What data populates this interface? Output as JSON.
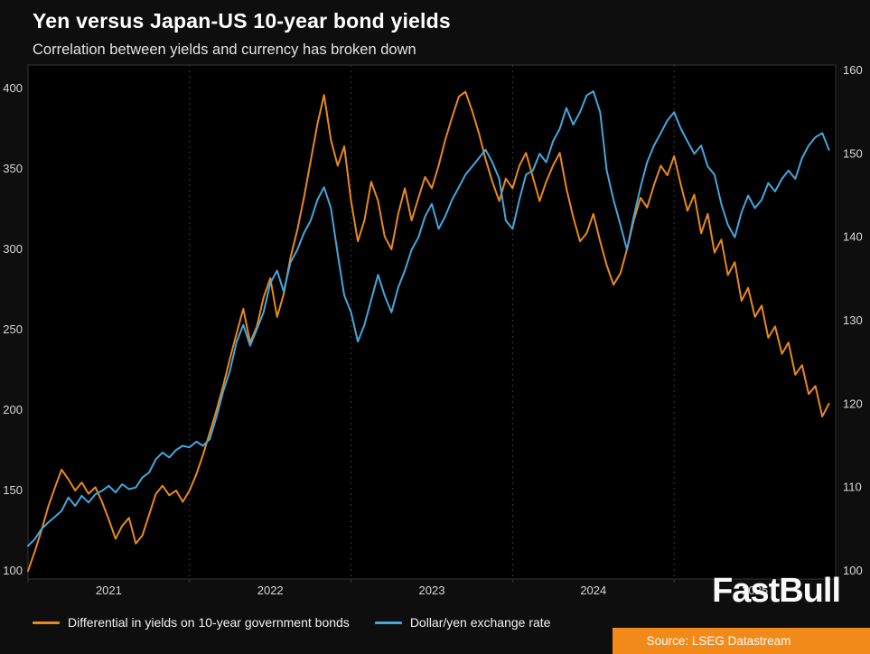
{
  "chart_data": {
    "type": "line",
    "title": "Yen versus Japan-US 10-year bond yields",
    "subtitle": "Correlation between yields and currency has broken down",
    "legend_position": "bottom",
    "grid": "vertical-dashed-yearly",
    "x_axis": {
      "range": [
        2021,
        2026
      ],
      "ticks": [
        2021,
        2022,
        2023,
        2024,
        2025
      ],
      "tick_labels": [
        "2021",
        "2022",
        "2023",
        "2024",
        "2025"
      ]
    },
    "left_axis": {
      "range": [
        100,
        400
      ],
      "ticks": [
        100,
        150,
        200,
        250,
        300,
        350,
        400
      ]
    },
    "right_axis": {
      "range": [
        100,
        160
      ],
      "ticks": [
        100,
        110,
        120,
        130,
        140,
        150,
        160
      ]
    },
    "x": [
      2021.0,
      2021.042,
      2021.083,
      2021.125,
      2021.167,
      2021.208,
      2021.25,
      2021.292,
      2021.333,
      2021.375,
      2021.417,
      2021.458,
      2021.5,
      2021.542,
      2021.583,
      2021.625,
      2021.667,
      2021.708,
      2021.75,
      2021.792,
      2021.833,
      2021.875,
      2021.917,
      2021.958,
      2022.0,
      2022.042,
      2022.083,
      2022.125,
      2022.167,
      2022.208,
      2022.25,
      2022.292,
      2022.333,
      2022.375,
      2022.417,
      2022.458,
      2022.5,
      2022.542,
      2022.583,
      2022.625,
      2022.667,
      2022.708,
      2022.75,
      2022.792,
      2022.833,
      2022.875,
      2022.917,
      2022.958,
      2023.0,
      2023.042,
      2023.083,
      2023.125,
      2023.167,
      2023.208,
      2023.25,
      2023.292,
      2023.333,
      2023.375,
      2023.417,
      2023.458,
      2023.5,
      2023.542,
      2023.583,
      2023.625,
      2023.667,
      2023.708,
      2023.75,
      2023.792,
      2023.833,
      2023.875,
      2023.917,
      2023.958,
      2024.0,
      2024.042,
      2024.083,
      2024.125,
      2024.167,
      2024.208,
      2024.25,
      2024.292,
      2024.333,
      2024.375,
      2024.417,
      2024.458,
      2024.5,
      2024.542,
      2024.583,
      2024.625,
      2024.667,
      2024.708,
      2024.75,
      2024.792,
      2024.833,
      2024.875,
      2024.917,
      2024.958,
      2025.0,
      2025.042,
      2025.083,
      2025.125,
      2025.167,
      2025.208,
      2025.25,
      2025.292,
      2025.333,
      2025.375,
      2025.417,
      2025.458,
      2025.5,
      2025.542,
      2025.583,
      2025.625,
      2025.667,
      2025.708,
      2025.75,
      2025.792,
      2025.833,
      2025.875,
      2025.917,
      2025.958
    ],
    "series": [
      {
        "name": "Differential in yields on 10-year government bonds",
        "axis": "left",
        "color": "#e8891d",
        "values": [
          100,
          112,
          125,
          140,
          152,
          163,
          157,
          150,
          155,
          148,
          152,
          143,
          132,
          120,
          128,
          133,
          117,
          122,
          135,
          148,
          153,
          147,
          150,
          143,
          150,
          160,
          172,
          186,
          200,
          215,
          232,
          248,
          263,
          242,
          252,
          270,
          282,
          258,
          272,
          295,
          312,
          332,
          355,
          378,
          396,
          368,
          352,
          364,
          330,
          305,
          318,
          342,
          330,
          308,
          300,
          322,
          338,
          318,
          332,
          345,
          338,
          352,
          368,
          382,
          395,
          398,
          386,
          372,
          356,
          342,
          330,
          344,
          338,
          352,
          360,
          345,
          330,
          342,
          352,
          360,
          338,
          320,
          305,
          310,
          322,
          305,
          290,
          278,
          285,
          300,
          318,
          332,
          326,
          340,
          352,
          346,
          358,
          340,
          324,
          334,
          310,
          322,
          298,
          306,
          284,
          292,
          268,
          276,
          258,
          265,
          245,
          252,
          235,
          242,
          222,
          228,
          210,
          215,
          196,
          204
        ]
      },
      {
        "name": "Dollar/yen exchange rate",
        "axis": "right",
        "color": "#45a6db",
        "values": [
          103.0,
          103.8,
          105.0,
          105.8,
          106.5,
          107.2,
          108.8,
          107.8,
          109.0,
          108.2,
          109.2,
          109.6,
          110.2,
          109.4,
          110.4,
          109.8,
          110.0,
          111.2,
          111.8,
          113.4,
          114.2,
          113.6,
          114.5,
          115.0,
          114.8,
          115.5,
          115.0,
          115.8,
          118.5,
          121.5,
          124.0,
          127.5,
          129.5,
          127.0,
          129.0,
          131.0,
          134.5,
          136.0,
          133.5,
          137.0,
          138.5,
          140.5,
          142.0,
          144.5,
          146.0,
          143.5,
          138.0,
          133.0,
          131.0,
          127.5,
          129.5,
          132.5,
          135.5,
          133.0,
          131.0,
          134.0,
          136.0,
          138.5,
          140.0,
          142.5,
          144.0,
          141.0,
          142.5,
          144.5,
          146.0,
          147.5,
          148.5,
          149.5,
          150.5,
          149.0,
          147.0,
          142.0,
          141.0,
          144.5,
          147.5,
          148.0,
          150.0,
          149.0,
          151.5,
          153.0,
          155.5,
          153.5,
          155.0,
          157.0,
          157.5,
          155.0,
          148.0,
          144.5,
          141.5,
          138.5,
          142.5,
          146.0,
          149.0,
          151.0,
          152.5,
          154.0,
          155.0,
          153.0,
          151.5,
          150.0,
          151.0,
          148.5,
          147.5,
          144.0,
          141.5,
          140.0,
          143.0,
          145.0,
          143.5,
          144.5,
          146.5,
          145.5,
          147.0,
          148.0,
          147.0,
          149.5,
          151.0,
          152.0,
          152.5,
          150.5
        ]
      }
    ]
  },
  "branding": {
    "logo": "FastBull",
    "source": "Source: LSEG Datastream"
  },
  "colors": {
    "background": "#0e0e0e",
    "plot_background": "#000000",
    "grid": "#3a3a3a",
    "frame": "#343434",
    "tick_text": "#d9d9d9",
    "title_text": "#ffffff",
    "subtitle_text": "#e2e2e2",
    "legend_text": "#f2f2f2",
    "logo_text": "#fafafa",
    "source_badge_bg": "#f28a19",
    "source_badge_text": "#ffffff"
  }
}
